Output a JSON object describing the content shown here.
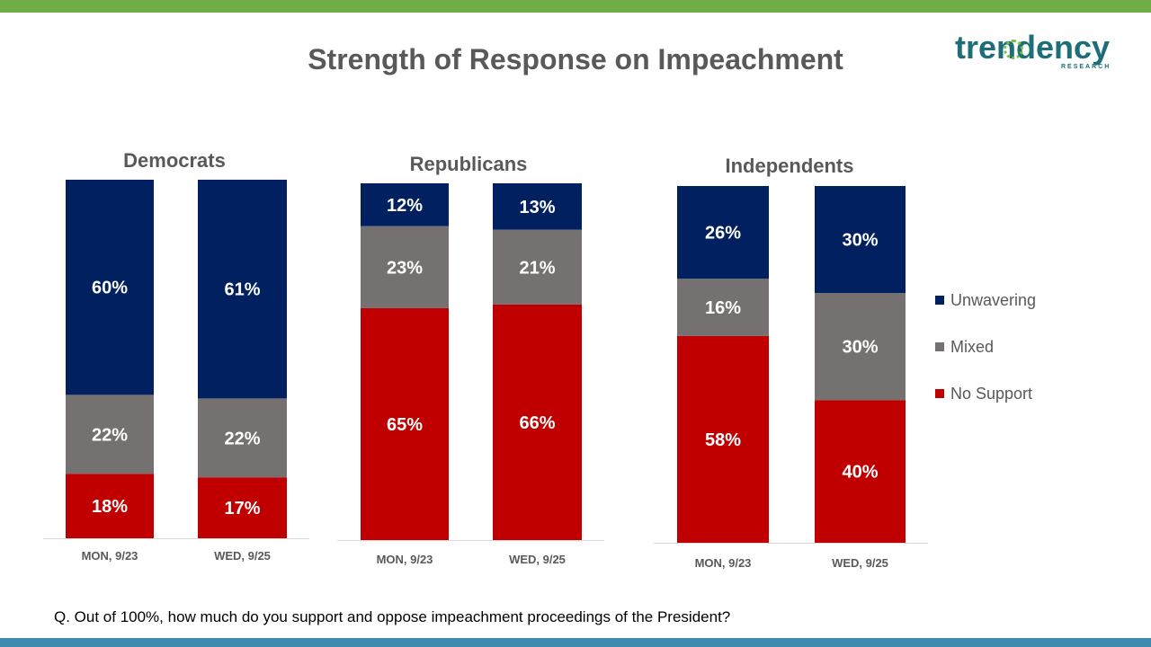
{
  "title": "Strength of Response on Impeachment",
  "logo": {
    "word": "trendency",
    "sub": "RESEARCH"
  },
  "question": "Q. Out of 100%, how much do you support and oppose impeachment proceedings of the President?",
  "colors": {
    "unwavering": "#002060",
    "mixed": "#767171",
    "no_support": "#c00000",
    "top_bar": "#70ad47",
    "bottom_bar": "#3e8ab0"
  },
  "legend": [
    {
      "name": "Unwavering",
      "color": "#002060"
    },
    {
      "name": "Mixed",
      "color": "#767171"
    },
    {
      "name": "No Support",
      "color": "#c00000"
    }
  ],
  "chart_data": [
    {
      "type": "bar",
      "stacked": true,
      "title": "Democrats",
      "categories": [
        "MON, 9/23",
        "WED, 9/25"
      ],
      "series": [
        {
          "name": "No Support",
          "values": [
            18,
            17
          ],
          "labels": [
            "18%",
            "17%"
          ]
        },
        {
          "name": "Mixed",
          "values": [
            22,
            22
          ],
          "labels": [
            "22%",
            "22%"
          ]
        },
        {
          "name": "Unwavering",
          "values": [
            60,
            61
          ],
          "labels": [
            "60%",
            "61%"
          ]
        }
      ],
      "ylim": [
        0,
        100
      ]
    },
    {
      "type": "bar",
      "stacked": true,
      "title": "Republicans",
      "categories": [
        "MON, 9/23",
        "WED, 9/25"
      ],
      "series": [
        {
          "name": "No Support",
          "values": [
            65,
            66
          ],
          "labels": [
            "65%",
            "66%"
          ]
        },
        {
          "name": "Mixed",
          "values": [
            23,
            21
          ],
          "labels": [
            "23%",
            "21%"
          ]
        },
        {
          "name": "Unwavering",
          "values": [
            12,
            13
          ],
          "labels": [
            "12%",
            "13%"
          ]
        }
      ],
      "ylim": [
        0,
        100
      ]
    },
    {
      "type": "bar",
      "stacked": true,
      "title": "Independents",
      "categories": [
        "MON, 9/23",
        "WED, 9/25"
      ],
      "series": [
        {
          "name": "No Support",
          "values": [
            58,
            40
          ],
          "labels": [
            "58%",
            "40%"
          ]
        },
        {
          "name": "Mixed",
          "values": [
            16,
            30
          ],
          "labels": [
            "16%",
            "30%"
          ]
        },
        {
          "name": "Unwavering",
          "values": [
            26,
            30
          ],
          "labels": [
            "26%",
            "30%"
          ]
        }
      ],
      "ylim": [
        0,
        100
      ]
    }
  ]
}
